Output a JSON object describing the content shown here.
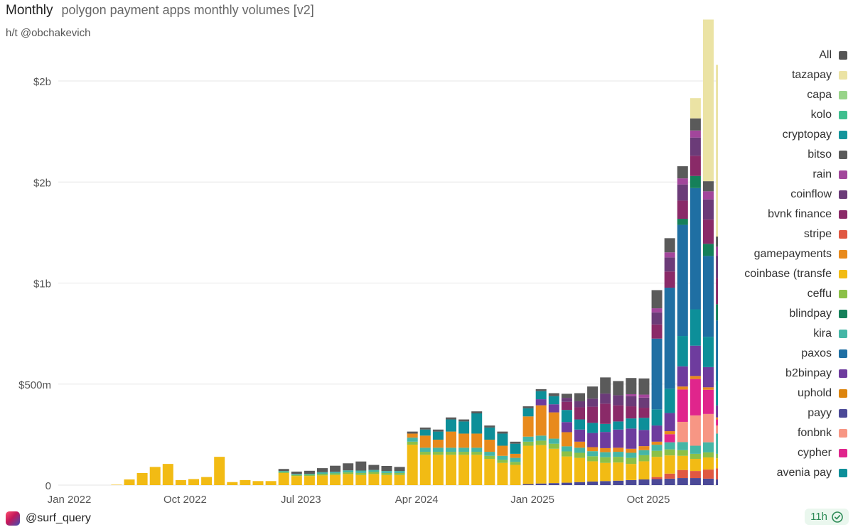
{
  "header": {
    "mode": "Monthly",
    "title": "polygon payment apps monthly volumes [v2]"
  },
  "subtitle": "h/t @obchakevich",
  "footer": {
    "handle": "@surf_query",
    "age": "11h"
  },
  "colors": {
    "grid": "#e6e6e6",
    "background": "#ffffff",
    "check": "#2e8b57"
  },
  "chart_data": {
    "type": "bar",
    "stacked": true,
    "title": "polygon payment apps monthly volumes [v2]",
    "x_tick_labels": [
      "Jan 2022",
      "Oct 2022",
      "Jul 2023",
      "Apr 2024",
      "Jan 2025",
      "Oct 2025"
    ],
    "y_tick_labels": [
      "0",
      "$500m",
      "$1b",
      "$2b",
      "$2b"
    ],
    "y_tick_values": [
      0,
      500000000,
      1000000000,
      1500000000,
      2000000000
    ],
    "ylim": [
      0,
      2000000000
    ],
    "grid": true,
    "legend_position": "right",
    "categories": [
      "Jan 2022",
      "Feb 2022",
      "Mar 2022",
      "Apr 2022",
      "May 2022",
      "Jun 2022",
      "Jul 2022",
      "Aug 2022",
      "Sep 2022",
      "Oct 2022",
      "Nov 2022",
      "Dec 2022",
      "Jan 2023",
      "Feb 2023",
      "Mar 2023",
      "Apr 2023",
      "May 2023",
      "Jun 2023",
      "Jul 2023",
      "Aug 2023",
      "Sep 2023",
      "Oct 2023",
      "Nov 2023",
      "Dec 2023",
      "Jan 2024",
      "Feb 2024",
      "Mar 2024",
      "Apr 2024",
      "May 2024",
      "Jun 2024",
      "Jul 2024",
      "Aug 2024",
      "Sep 2024",
      "Oct 2024",
      "Nov 2024",
      "Dec 2024",
      "Jan 2025",
      "Feb 2025",
      "Mar 2025",
      "Apr 2025",
      "May 2025",
      "Jun 2025",
      "Jul 2025",
      "Aug 2025",
      "Sep 2025",
      "Oct 2025",
      "Nov 2025",
      "Dec 2025",
      "Jan 2026",
      "Feb 2026",
      "Mar 2026",
      "Apr 2026",
      "May 2026"
    ],
    "legend": [
      {
        "name": "All",
        "color": "#555555"
      },
      {
        "name": "tazapay",
        "color": "#ebe3a4"
      },
      {
        "name": "capa",
        "color": "#98d489"
      },
      {
        "name": "kolo",
        "color": "#3fbf8f"
      },
      {
        "name": "cryptopay",
        "color": "#13949b"
      },
      {
        "name": "bitso",
        "color": "#5a5a5a"
      },
      {
        "name": "rain",
        "color": "#a2469b"
      },
      {
        "name": "coinflow",
        "color": "#6b3b78"
      },
      {
        "name": "bvnk finance",
        "color": "#8a2a68"
      },
      {
        "name": "stripe",
        "color": "#e05842"
      },
      {
        "name": "gamepayments",
        "color": "#e88a1c"
      },
      {
        "name": "coinbase (transfe",
        "color": "#f2bb14"
      },
      {
        "name": "ceffu",
        "color": "#8cc048"
      },
      {
        "name": "blindpay",
        "color": "#15805a"
      },
      {
        "name": "kira",
        "color": "#45b6a6"
      },
      {
        "name": "paxos",
        "color": "#1f6fa3"
      },
      {
        "name": "b2binpay",
        "color": "#6e3c9e"
      },
      {
        "name": "uphold",
        "color": "#dd850f"
      },
      {
        "name": "payy",
        "color": "#4b4997"
      },
      {
        "name": "fonbnk",
        "color": "#f79684"
      },
      {
        "name": "cypher",
        "color": "#e0258c"
      },
      {
        "name": "avenia pay",
        "color": "#0d8f99"
      }
    ],
    "series": [
      {
        "name": "payy",
        "color": "#4b4997",
        "values": [
          0,
          0,
          0,
          0,
          0,
          0,
          0,
          0,
          0,
          0,
          0,
          0,
          0,
          0,
          0,
          0,
          0,
          0,
          0,
          0,
          0,
          0,
          0,
          0,
          0,
          0,
          0,
          0,
          0,
          0,
          0,
          0,
          0,
          0,
          0,
          0,
          5,
          8,
          10,
          12,
          15,
          18,
          20,
          22,
          25,
          28,
          30,
          32,
          35,
          35,
          32,
          28,
          20
        ]
      },
      {
        "name": "stripe",
        "color": "#e05842",
        "values": [
          0,
          0,
          0,
          0,
          0,
          0,
          0,
          0,
          0,
          0,
          0,
          0,
          0,
          0,
          0,
          0,
          0,
          0,
          0,
          0,
          0,
          0,
          0,
          0,
          0,
          0,
          0,
          0,
          0,
          0,
          0,
          0,
          0,
          0,
          0,
          0,
          0,
          0,
          0,
          0,
          0,
          0,
          0,
          0,
          0,
          0,
          10,
          25,
          40,
          35,
          45,
          55,
          25
        ]
      },
      {
        "name": "coinbase (transfe",
        "color": "#f2bb14",
        "values": [
          0,
          0,
          0,
          0,
          2,
          28,
          60,
          90,
          105,
          25,
          30,
          40,
          140,
          15,
          25,
          20,
          20,
          60,
          45,
          45,
          48,
          50,
          55,
          50,
          55,
          50,
          50,
          200,
          150,
          150,
          150,
          150,
          150,
          130,
          110,
          100,
          190,
          190,
          170,
          130,
          120,
          100,
          90,
          90,
          80,
          90,
          100,
          90,
          70,
          60,
          60,
          50,
          20
        ]
      },
      {
        "name": "ceffu",
        "color": "#8cc048",
        "values": [
          0,
          0,
          0,
          0,
          0,
          0,
          0,
          0,
          0,
          0,
          0,
          0,
          0,
          0,
          0,
          0,
          0,
          5,
          5,
          6,
          8,
          8,
          8,
          10,
          10,
          10,
          10,
          15,
          15,
          15,
          15,
          15,
          15,
          15,
          15,
          15,
          20,
          22,
          25,
          25,
          25,
          25,
          28,
          28,
          30,
          30,
          30,
          30,
          28,
          25,
          25,
          22,
          12
        ]
      },
      {
        "name": "kira",
        "color": "#45b6a6",
        "values": [
          0,
          0,
          0,
          0,
          0,
          0,
          0,
          0,
          0,
          0,
          0,
          0,
          0,
          0,
          0,
          0,
          0,
          5,
          5,
          5,
          8,
          8,
          10,
          12,
          10,
          10,
          10,
          20,
          20,
          20,
          20,
          20,
          20,
          20,
          20,
          20,
          25,
          25,
          25,
          25,
          25,
          25,
          25,
          25,
          25,
          25,
          30,
          35,
          40,
          40,
          50,
          100,
          50
        ]
      },
      {
        "name": "uphold",
        "color": "#dd850f",
        "values": [
          0,
          0,
          0,
          0,
          0,
          0,
          0,
          0,
          0,
          0,
          0,
          0,
          0,
          0,
          0,
          0,
          0,
          0,
          0,
          0,
          0,
          0,
          0,
          0,
          0,
          0,
          0,
          0,
          0,
          0,
          0,
          0,
          0,
          0,
          0,
          0,
          0,
          0,
          0,
          0,
          0,
          0,
          0,
          0,
          0,
          0,
          0,
          0,
          0,
          0,
          0,
          0,
          0
        ]
      },
      {
        "name": "fonbnk",
        "color": "#f79684",
        "values": [
          0,
          0,
          0,
          0,
          0,
          0,
          0,
          0,
          0,
          0,
          0,
          0,
          0,
          0,
          0,
          0,
          0,
          0,
          0,
          0,
          0,
          0,
          0,
          0,
          0,
          0,
          0,
          0,
          0,
          0,
          0,
          0,
          0,
          0,
          0,
          0,
          0,
          0,
          0,
          0,
          0,
          0,
          0,
          0,
          0,
          0,
          0,
          0,
          100,
          150,
          140,
          40,
          10
        ]
      },
      {
        "name": "cypher",
        "color": "#e0258c",
        "values": [
          0,
          0,
          0,
          0,
          0,
          0,
          0,
          0,
          0,
          0,
          0,
          0,
          0,
          0,
          0,
          0,
          0,
          0,
          0,
          0,
          0,
          0,
          0,
          0,
          0,
          0,
          0,
          0,
          0,
          0,
          0,
          0,
          0,
          0,
          0,
          0,
          0,
          0,
          0,
          0,
          0,
          0,
          0,
          0,
          0,
          0,
          0,
          40,
          160,
          180,
          120,
          30,
          10
        ]
      },
      {
        "name": "gamepayments",
        "color": "#e88a1c",
        "values": [
          0,
          0,
          0,
          0,
          0,
          0,
          0,
          0,
          0,
          0,
          0,
          0,
          0,
          0,
          0,
          0,
          0,
          0,
          0,
          0,
          0,
          0,
          0,
          0,
          0,
          0,
          0,
          20,
          60,
          40,
          80,
          70,
          70,
          60,
          50,
          20,
          100,
          150,
          130,
          70,
          30,
          20,
          20,
          20,
          20,
          20,
          15,
          15,
          15,
          15,
          12,
          10,
          5
        ]
      },
      {
        "name": "b2binpay",
        "color": "#6e3c9e",
        "values": [
          0,
          0,
          0,
          0,
          0,
          0,
          0,
          0,
          0,
          0,
          0,
          0,
          0,
          0,
          0,
          0,
          0,
          0,
          0,
          0,
          0,
          0,
          0,
          0,
          0,
          0,
          0,
          0,
          0,
          0,
          0,
          0,
          0,
          0,
          0,
          0,
          0,
          30,
          40,
          50,
          60,
          70,
          80,
          90,
          100,
          80,
          80,
          90,
          100,
          150,
          100,
          60,
          40
        ]
      },
      {
        "name": "avenia pay",
        "color": "#0d8f99",
        "values": [
          0,
          0,
          0,
          0,
          0,
          0,
          0,
          0,
          0,
          0,
          0,
          0,
          0,
          0,
          0,
          0,
          0,
          0,
          0,
          0,
          0,
          0,
          0,
          0,
          0,
          0,
          0,
          0,
          30,
          40,
          60,
          60,
          100,
          60,
          60,
          50,
          40,
          40,
          40,
          60,
          50,
          50,
          40,
          40,
          50,
          60,
          80,
          120,
          150,
          180,
          150,
          120,
          100
        ]
      },
      {
        "name": "paxos",
        "color": "#1f6fa3",
        "values": [
          0,
          0,
          0,
          0,
          0,
          0,
          0,
          0,
          0,
          0,
          0,
          0,
          0,
          0,
          0,
          0,
          0,
          0,
          0,
          0,
          0,
          0,
          0,
          0,
          0,
          0,
          0,
          0,
          0,
          0,
          0,
          0,
          0,
          0,
          0,
          0,
          0,
          0,
          0,
          0,
          0,
          0,
          0,
          0,
          0,
          0,
          350,
          500,
          550,
          600,
          400,
          300,
          150
        ]
      },
      {
        "name": "blindpay",
        "color": "#15805a",
        "values": [
          0,
          0,
          0,
          0,
          0,
          0,
          0,
          0,
          0,
          0,
          0,
          0,
          0,
          0,
          0,
          0,
          0,
          0,
          0,
          0,
          0,
          0,
          0,
          0,
          0,
          0,
          0,
          0,
          0,
          0,
          0,
          0,
          0,
          0,
          0,
          0,
          0,
          0,
          0,
          0,
          0,
          0,
          0,
          0,
          0,
          0,
          0,
          0,
          30,
          60,
          60,
          80,
          20
        ]
      },
      {
        "name": "bvnk finance",
        "color": "#8a2a68",
        "values": [
          0,
          0,
          0,
          0,
          0,
          0,
          0,
          0,
          0,
          0,
          0,
          0,
          0,
          0,
          0,
          0,
          0,
          0,
          0,
          0,
          0,
          0,
          0,
          0,
          0,
          0,
          0,
          0,
          0,
          0,
          0,
          0,
          0,
          0,
          0,
          0,
          0,
          0,
          0,
          40,
          60,
          80,
          100,
          80,
          60,
          50,
          70,
          80,
          90,
          100,
          120,
          130,
          40
        ]
      },
      {
        "name": "coinflow",
        "color": "#6b3b78",
        "values": [
          0,
          0,
          0,
          0,
          0,
          0,
          0,
          0,
          0,
          0,
          0,
          0,
          0,
          0,
          0,
          0,
          0,
          0,
          0,
          0,
          0,
          0,
          0,
          0,
          0,
          0,
          0,
          0,
          0,
          0,
          0,
          0,
          0,
          0,
          0,
          0,
          0,
          0,
          0,
          20,
          30,
          40,
          50,
          50,
          50,
          50,
          60,
          70,
          80,
          90,
          100,
          110,
          40
        ]
      },
      {
        "name": "rain",
        "color": "#a2469b",
        "values": [
          0,
          0,
          0,
          0,
          0,
          0,
          0,
          0,
          0,
          0,
          0,
          0,
          0,
          0,
          0,
          0,
          0,
          0,
          0,
          0,
          0,
          0,
          0,
          0,
          0,
          0,
          0,
          0,
          0,
          0,
          0,
          0,
          0,
          0,
          0,
          0,
          0,
          0,
          0,
          0,
          0,
          0,
          0,
          0,
          10,
          15,
          20,
          25,
          30,
          35,
          40,
          45,
          20
        ]
      },
      {
        "name": "bitso",
        "color": "#5a5a5a",
        "values": [
          0,
          0,
          0,
          0,
          0,
          0,
          0,
          0,
          0,
          0,
          0,
          0,
          0,
          0,
          0,
          0,
          0,
          10,
          12,
          15,
          20,
          30,
          35,
          45,
          25,
          25,
          20,
          10,
          10,
          10,
          10,
          10,
          10,
          10,
          10,
          10,
          10,
          10,
          15,
          20,
          40,
          60,
          80,
          70,
          80,
          80,
          90,
          70,
          60,
          60,
          50,
          50,
          30
        ]
      },
      {
        "name": "tazapay",
        "color": "#ebe3a4",
        "values": [
          0,
          0,
          0,
          0,
          0,
          0,
          0,
          0,
          0,
          0,
          0,
          0,
          0,
          0,
          0,
          0,
          0,
          0,
          0,
          0,
          0,
          0,
          0,
          0,
          0,
          0,
          0,
          0,
          0,
          0,
          0,
          0,
          0,
          0,
          0,
          0,
          0,
          0,
          0,
          0,
          0,
          0,
          0,
          0,
          0,
          0,
          0,
          0,
          0,
          100,
          800,
          850,
          800
        ]
      }
    ]
  }
}
